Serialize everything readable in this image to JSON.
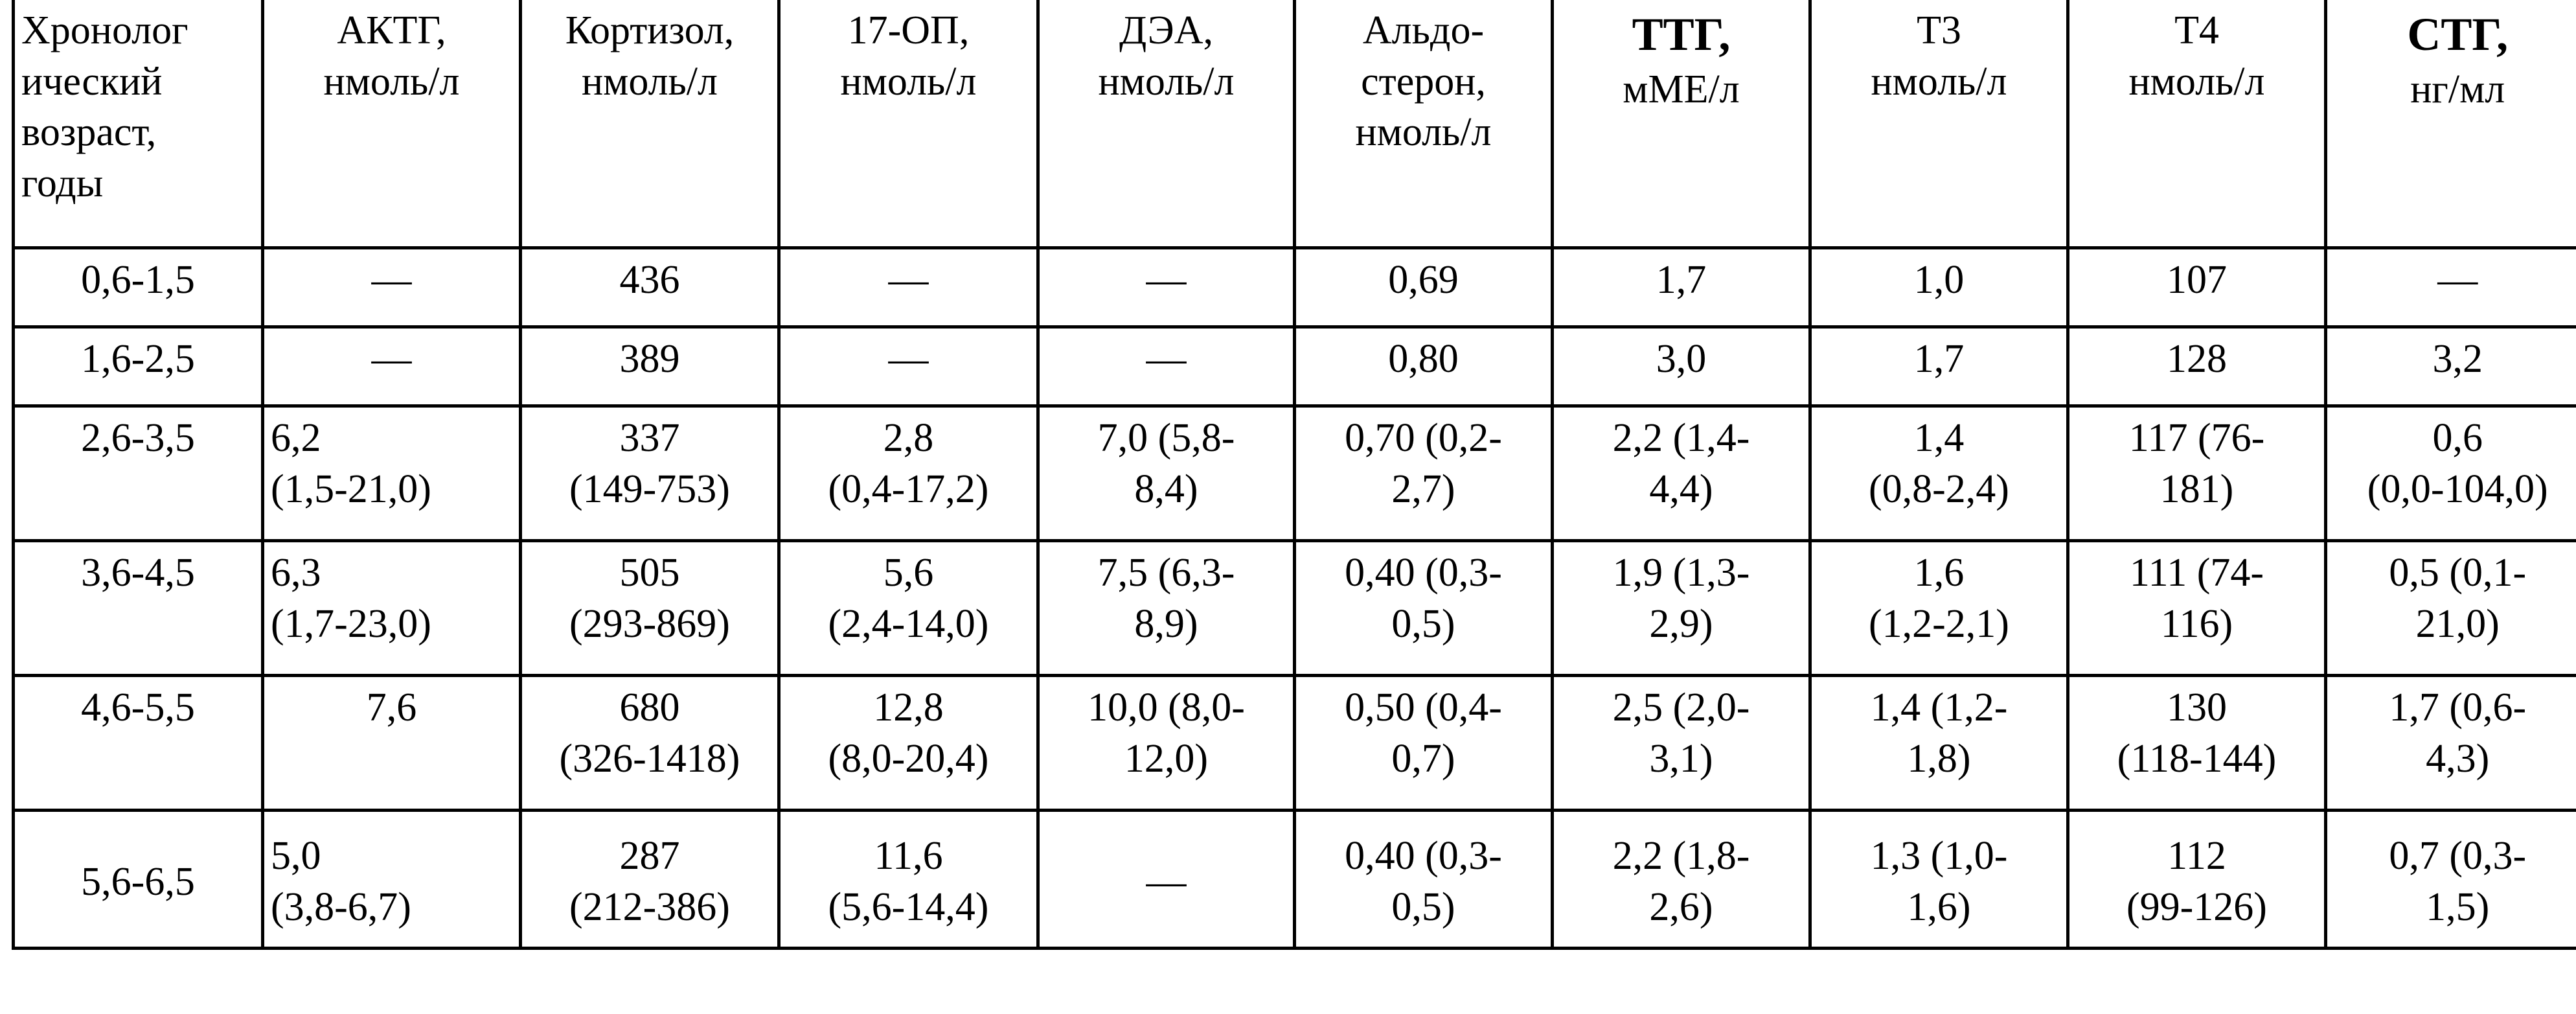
{
  "table": {
    "header": [
      {
        "name": "Хронолог\nический\nвозраст,\nгоды"
      },
      {
        "name": "АКТГ,",
        "unit": "нмоль/л"
      },
      {
        "name": "Кортизол,",
        "unit": "нмоль/л"
      },
      {
        "name": "17-ОП,",
        "unit": "нмоль/л"
      },
      {
        "name": "ДЭА,",
        "unit": "нмоль/л"
      },
      {
        "name": "Альдо-\nстерон,",
        "unit": "нмоль/л"
      },
      {
        "name": "ТТГ,",
        "unit": "мМЕ/л",
        "bold": true
      },
      {
        "name": "Т3",
        "unit": "нмоль/л"
      },
      {
        "name": "Т4",
        "unit": "нмоль/л"
      },
      {
        "name": "СТГ,",
        "unit": "нг/мл",
        "bold": true
      }
    ],
    "rows": [
      [
        "0,6-1,5",
        "—",
        "436",
        "—",
        "—",
        "0,69",
        "1,7",
        "1,0",
        "107",
        "—"
      ],
      [
        "1,6-2,5",
        "—",
        "389",
        "—",
        "—",
        "0,80",
        "3,0",
        "1,7",
        "128",
        "3,2"
      ],
      [
        "2,6-3,5",
        "6,2\n(1,5-21,0)",
        "337\n(149-753)",
        "2,8\n(0,4-17,2)",
        "7,0 (5,8-\n8,4)",
        "0,70 (0,2-\n2,7)",
        "2,2 (1,4-\n4,4)",
        "1,4\n(0,8-2,4)",
        "117 (76-\n181)",
        "0,6\n(0,0-104,0)"
      ],
      [
        "3,6-4,5",
        "6,3\n(1,7-23,0)",
        "505\n(293-869)",
        "5,6\n(2,4-14,0)",
        "7,5 (6,3-\n8,9)",
        "0,40 (0,3-\n0,5)",
        "1,9 (1,3-\n2,9)",
        "1,6\n(1,2-2,1)",
        "111 (74-\n116)",
        "0,5 (0,1-\n21,0)"
      ],
      [
        "4,6-5,5",
        "7,6",
        "680\n(326-1418)",
        "12,8\n(8,0-20,4)",
        "10,0 (8,0-\n12,0)",
        "0,50 (0,4-\n0,7)",
        "2,5 (2,0-\n3,1)",
        "1,4 (1,2-\n1,8)",
        "130\n(118-144)",
        "1,7 (0,6-\n4,3)"
      ],
      [
        "5,6-6,5",
        "5,0\n(3,8-6,7)",
        "287\n(212-386)",
        "11,6\n(5,6-14,4)",
        "—",
        "0,40 (0,3-\n0,5)",
        "2,2 (1,8-\n2,6)",
        "1,3 (1,0-\n1,6)",
        "112\n(99-126)",
        "0,7 (0,3-\n1,5)"
      ]
    ]
  }
}
